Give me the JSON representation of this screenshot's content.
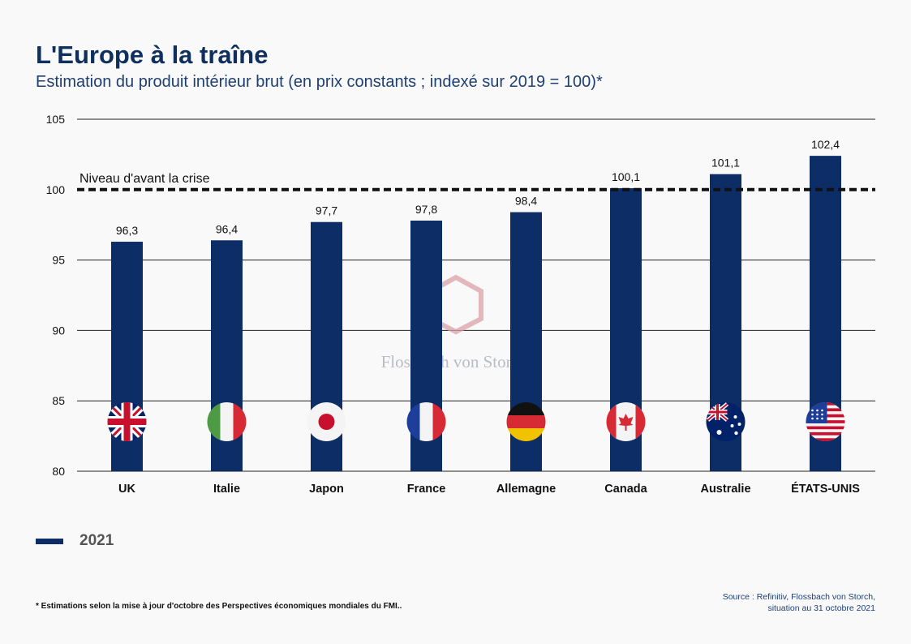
{
  "header": {
    "title": "L'Europe à la traîne",
    "subtitle": "Estimation du produit intérieur brut (en prix constants ; indexé sur 2019 = 100)*"
  },
  "chart_data": {
    "type": "bar",
    "categories": [
      "UK",
      "Italie",
      "Japon",
      "France",
      "Allemagne",
      "Canada",
      "Australie",
      "ÉTATS-UNIS"
    ],
    "series": [
      {
        "name": "2021",
        "values": [
          96.3,
          96.4,
          97.7,
          97.8,
          98.4,
          100.1,
          101.1,
          102.4
        ]
      }
    ],
    "value_labels": [
      "96,3",
      "96,4",
      "97,7",
      "97,8",
      "98,4",
      "100,1",
      "101,1",
      "102,4"
    ],
    "flags": [
      "uk-flag-icon",
      "italy-flag-icon",
      "japan-flag-icon",
      "france-flag-icon",
      "germany-flag-icon",
      "canada-flag-icon",
      "australia-flag-icon",
      "usa-flag-icon"
    ],
    "ylim": [
      80,
      105
    ],
    "yticks": [
      80,
      85,
      90,
      95,
      100,
      105
    ],
    "grid": true,
    "reference_line": {
      "value": 100,
      "label": "Niveau d'avant la crise"
    },
    "bar_color": "#0d2d66",
    "watermark": "Flossbach von Storch"
  },
  "legend": {
    "label": "2021"
  },
  "footnote": "* Estimations selon la mise à jour d'octobre des Perspectives économiques mondiales du FMI..",
  "source": {
    "line1": "Source : Refinitiv, Flossbach von Storch,",
    "line2": "situation au 31 octobre 2021"
  }
}
